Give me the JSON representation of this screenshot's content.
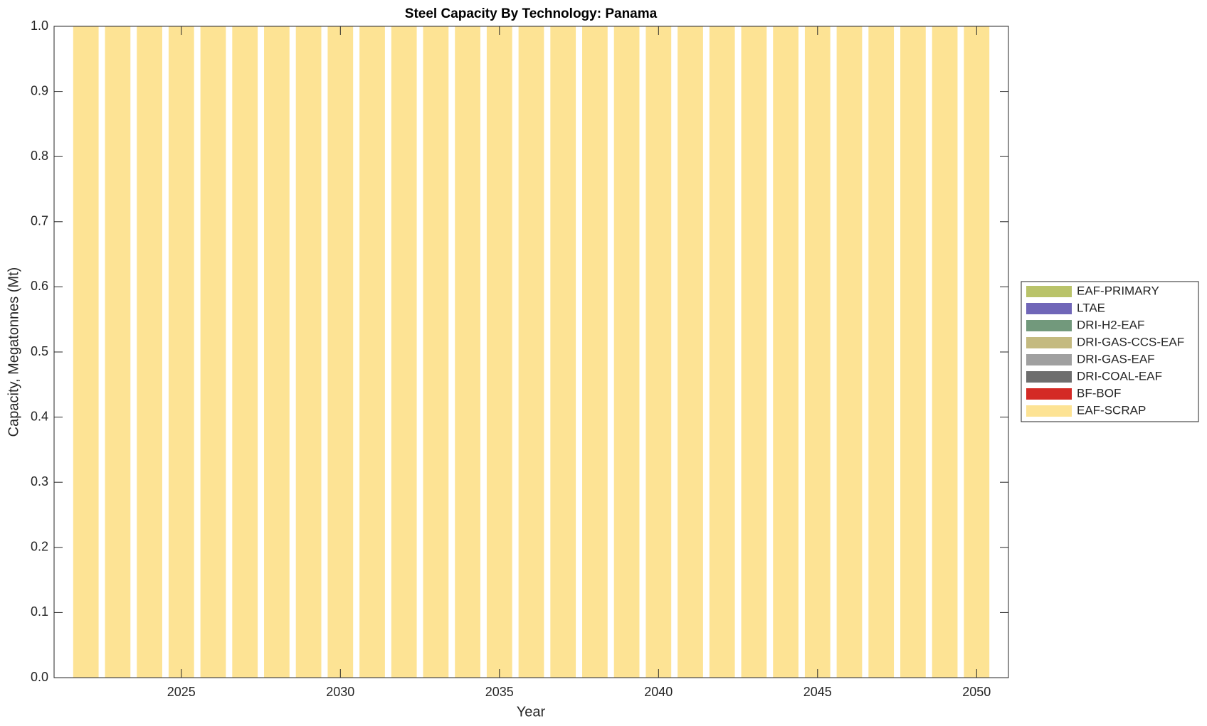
{
  "chart_data": {
    "type": "stacked-bar",
    "title": "Steel Capacity By Technology: Panama",
    "x_label": "Year",
    "y_label": "Capacity, Megatonnes (Mt)",
    "x": [
      2022,
      2023,
      2024,
      2025,
      2026,
      2027,
      2028,
      2029,
      2030,
      2031,
      2032,
      2033,
      2034,
      2035,
      2036,
      2037,
      2038,
      2039,
      2040,
      2041,
      2042,
      2043,
      2044,
      2045,
      2046,
      2047,
      2048,
      2049,
      2050
    ],
    "series": [
      {
        "name": "EAF-SCRAP",
        "color": "#fde394",
        "values": [
          1,
          1,
          1,
          1,
          1,
          1,
          1,
          1,
          1,
          1,
          1,
          1,
          1,
          1,
          1,
          1,
          1,
          1,
          1,
          1,
          1,
          1,
          1,
          1,
          1,
          1,
          1,
          1,
          1
        ]
      },
      {
        "name": "BF-BOF",
        "color": "#d42a25",
        "values": [
          0,
          0,
          0,
          0,
          0,
          0,
          0,
          0,
          0,
          0,
          0,
          0,
          0,
          0,
          0,
          0,
          0,
          0,
          0,
          0,
          0,
          0,
          0,
          0,
          0,
          0,
          0,
          0,
          0
        ]
      },
      {
        "name": "DRI-COAL-EAF",
        "color": "#6e6e6e",
        "values": [
          0,
          0,
          0,
          0,
          0,
          0,
          0,
          0,
          0,
          0,
          0,
          0,
          0,
          0,
          0,
          0,
          0,
          0,
          0,
          0,
          0,
          0,
          0,
          0,
          0,
          0,
          0,
          0,
          0
        ]
      },
      {
        "name": "DRI-GAS-EAF",
        "color": "#a0a0a0",
        "values": [
          0,
          0,
          0,
          0,
          0,
          0,
          0,
          0,
          0,
          0,
          0,
          0,
          0,
          0,
          0,
          0,
          0,
          0,
          0,
          0,
          0,
          0,
          0,
          0,
          0,
          0,
          0,
          0,
          0
        ]
      },
      {
        "name": "DRI-GAS-CCS-EAF",
        "color": "#c4ba80",
        "values": [
          0,
          0,
          0,
          0,
          0,
          0,
          0,
          0,
          0,
          0,
          0,
          0,
          0,
          0,
          0,
          0,
          0,
          0,
          0,
          0,
          0,
          0,
          0,
          0,
          0,
          0,
          0,
          0,
          0
        ]
      },
      {
        "name": "DRI-H2-EAF",
        "color": "#72997c",
        "values": [
          0,
          0,
          0,
          0,
          0,
          0,
          0,
          0,
          0,
          0,
          0,
          0,
          0,
          0,
          0,
          0,
          0,
          0,
          0,
          0,
          0,
          0,
          0,
          0,
          0,
          0,
          0,
          0,
          0
        ]
      },
      {
        "name": "LTAE",
        "color": "#7066b8",
        "values": [
          0,
          0,
          0,
          0,
          0,
          0,
          0,
          0,
          0,
          0,
          0,
          0,
          0,
          0,
          0,
          0,
          0,
          0,
          0,
          0,
          0,
          0,
          0,
          0,
          0,
          0,
          0,
          0,
          0
        ]
      },
      {
        "name": "EAF-PRIMARY",
        "color": "#b9c36a",
        "values": [
          0,
          0,
          0,
          0,
          0,
          0,
          0,
          0,
          0,
          0,
          0,
          0,
          0,
          0,
          0,
          0,
          0,
          0,
          0,
          0,
          0,
          0,
          0,
          0,
          0,
          0,
          0,
          0,
          0
        ]
      }
    ],
    "xlim": [
      2021,
      2051
    ],
    "xticks": [
      2025,
      2030,
      2035,
      2040,
      2045,
      2050
    ],
    "ylim": [
      0,
      1
    ],
    "yticks": [
      {
        "value": 0,
        "label": "0.0"
      },
      0.1,
      0.2,
      0.3,
      0.4,
      0.5,
      0.6,
      0.7,
      0.8,
      0.9,
      {
        "value": 1,
        "label": "1.0"
      }
    ],
    "legend": "right"
  }
}
